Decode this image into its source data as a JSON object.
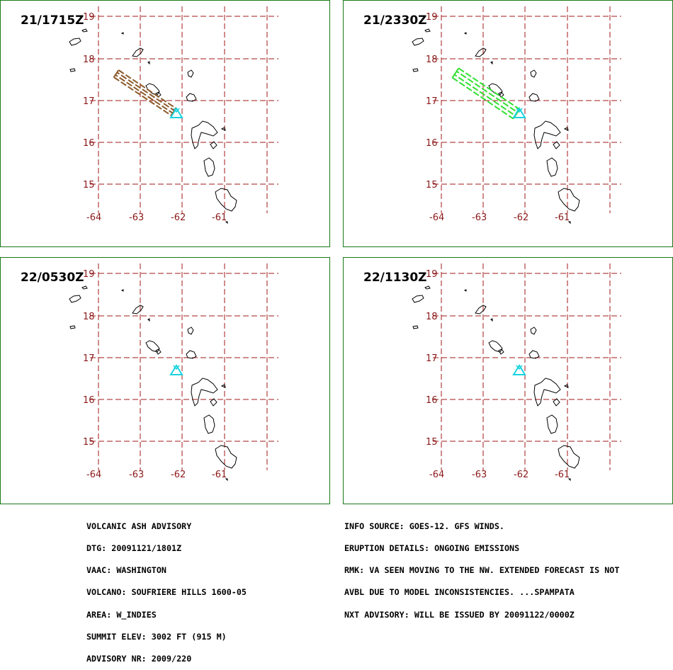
{
  "panels": [
    {
      "time": "21/1715Z",
      "ash": "brown"
    },
    {
      "time": "21/2330Z",
      "ash": "green"
    },
    {
      "time": "22/0530Z",
      "ash": "none"
    },
    {
      "time": "22/1130Z",
      "ash": "none"
    }
  ],
  "map": {
    "lat_labels": [
      "19",
      "18",
      "17",
      "16",
      "15"
    ],
    "lon_labels": [
      "-64",
      "-63",
      "-62",
      "-61"
    ],
    "colors": {
      "grid": "#a01818",
      "labels": "#8b1a1a",
      "coast": "#000000",
      "volcano": "#19d3e0",
      "ash_brown": "#8b5a2b",
      "ash_green": "#33e033",
      "frame": "#1a7a1a"
    }
  },
  "advisory_left": [
    "VOLCANIC ASH ADVISORY",
    "DTG: 20091121/1801Z",
    "VAAC: WASHINGTON",
    "VOLCANO: SOUFRIERE HILLS 1600-05",
    "AREA: W_INDIES",
    "SUMMIT ELEV: 3002 FT (915 M)",
    "ADVISORY NR: 2009/220"
  ],
  "advisory_right": [
    "INFO SOURCE: GOES-12. GFS WINDS.",
    "ERUPTION DETAILS: ONGOING EMISSIONS",
    "RMK: VA SEEN MOVING TO THE NW. EXTENDED FORECAST IS NOT",
    "AVBL DUE TO MODEL INCONSISTENCIES. ...SPAMPATA",
    "NXT ADVISORY: WILL BE ISSUED BY 20091122/0000Z"
  ]
}
